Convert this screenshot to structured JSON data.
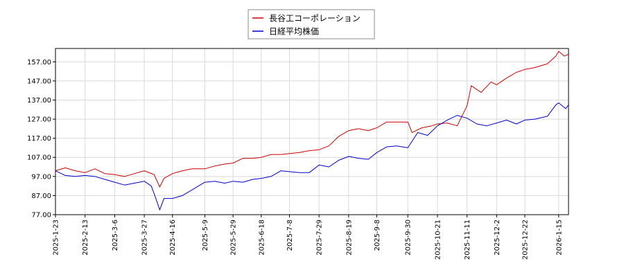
{
  "chart_data": {
    "type": "line",
    "title": "",
    "xlabel": "",
    "ylabel": "",
    "ylim": [
      77.0,
      164.0
    ],
    "yticks": [
      77.0,
      87.0,
      97.0,
      107.0,
      117.0,
      127.0,
      137.0,
      147.0,
      157.0
    ],
    "ytick_labels": [
      "77.00",
      "87.00",
      "97.00",
      "107.00",
      "117.00",
      "127.00",
      "137.00",
      "147.00",
      "157.00"
    ],
    "xlim": [
      "2025-01-23",
      "2026-01-22"
    ],
    "xticks": [
      "2025-1-23",
      "2025-2-13",
      "2025-3-6",
      "2025-3-27",
      "2025-4-16",
      "2025-5-9",
      "2025-5-29",
      "2025-6-18",
      "2025-7-8",
      "2025-7-29",
      "2025-8-19",
      "2025-9-8",
      "2025-9-30",
      "2025-10-21",
      "2025-11-11",
      "2025-12-2",
      "2025-12-22",
      "2026-1-15"
    ],
    "grid": true,
    "legend_position": "top-center",
    "series": [
      {
        "name": "長谷工コーポレーション",
        "color": "#cc0000",
        "points": [
          [
            "2025-01-23",
            100.0
          ],
          [
            "2025-01-30",
            101.5
          ],
          [
            "2025-02-06",
            100.0
          ],
          [
            "2025-02-13",
            99.0
          ],
          [
            "2025-02-20",
            101.0
          ],
          [
            "2025-02-27",
            98.5
          ],
          [
            "2025-03-06",
            98.0
          ],
          [
            "2025-03-13",
            97.0
          ],
          [
            "2025-03-20",
            98.5
          ],
          [
            "2025-03-27",
            100.0
          ],
          [
            "2025-04-03",
            98.0
          ],
          [
            "2025-04-07",
            91.5
          ],
          [
            "2025-04-10",
            96.0
          ],
          [
            "2025-04-16",
            98.5
          ],
          [
            "2025-04-23",
            100.0
          ],
          [
            "2025-04-30",
            101.0
          ],
          [
            "2025-05-09",
            101.0
          ],
          [
            "2025-05-16",
            102.5
          ],
          [
            "2025-05-23",
            103.5
          ],
          [
            "2025-05-29",
            104.0
          ],
          [
            "2025-06-05",
            106.5
          ],
          [
            "2025-06-12",
            106.5
          ],
          [
            "2025-06-18",
            107.0
          ],
          [
            "2025-06-25",
            108.5
          ],
          [
            "2025-07-02",
            108.5
          ],
          [
            "2025-07-08",
            109.0
          ],
          [
            "2025-07-15",
            109.5
          ],
          [
            "2025-07-22",
            110.5
          ],
          [
            "2025-07-29",
            111.0
          ],
          [
            "2025-08-05",
            113.0
          ],
          [
            "2025-08-12",
            118.0
          ],
          [
            "2025-08-19",
            121.0
          ],
          [
            "2025-08-26",
            122.0
          ],
          [
            "2025-09-02",
            121.0
          ],
          [
            "2025-09-08",
            122.5
          ],
          [
            "2025-09-15",
            125.5
          ],
          [
            "2025-09-22",
            125.5
          ],
          [
            "2025-09-30",
            125.5
          ],
          [
            "2025-10-03",
            120.0
          ],
          [
            "2025-10-10",
            122.5
          ],
          [
            "2025-10-17",
            123.5
          ],
          [
            "2025-10-21",
            124.5
          ],
          [
            "2025-10-28",
            125.0
          ],
          [
            "2025-11-04",
            123.5
          ],
          [
            "2025-11-11",
            134.0
          ],
          [
            "2025-11-14",
            144.5
          ],
          [
            "2025-11-21",
            141.0
          ],
          [
            "2025-11-28",
            146.5
          ],
          [
            "2025-12-02",
            145.0
          ],
          [
            "2025-12-09",
            148.5
          ],
          [
            "2025-12-16",
            151.5
          ],
          [
            "2025-12-22",
            153.0
          ],
          [
            "2025-12-29",
            154.0
          ],
          [
            "2026-01-07",
            156.0
          ],
          [
            "2026-01-13",
            160.0
          ],
          [
            "2026-01-15",
            162.5
          ],
          [
            "2026-01-19",
            160.0
          ],
          [
            "2026-01-22",
            161.0
          ]
        ]
      },
      {
        "name": "日経平均株価",
        "color": "#0000cc",
        "points": [
          [
            "2025-01-23",
            100.0
          ],
          [
            "2025-01-30",
            97.5
          ],
          [
            "2025-02-06",
            97.0
          ],
          [
            "2025-02-13",
            97.5
          ],
          [
            "2025-02-20",
            97.0
          ],
          [
            "2025-02-27",
            95.5
          ],
          [
            "2025-03-06",
            94.0
          ],
          [
            "2025-03-13",
            92.5
          ],
          [
            "2025-03-20",
            93.5
          ],
          [
            "2025-03-27",
            94.5
          ],
          [
            "2025-04-01",
            92.0
          ],
          [
            "2025-04-04",
            86.0
          ],
          [
            "2025-04-07",
            79.5
          ],
          [
            "2025-04-10",
            85.5
          ],
          [
            "2025-04-16",
            85.5
          ],
          [
            "2025-04-23",
            87.0
          ],
          [
            "2025-04-30",
            90.0
          ],
          [
            "2025-05-09",
            94.0
          ],
          [
            "2025-05-16",
            94.5
          ],
          [
            "2025-05-23",
            93.5
          ],
          [
            "2025-05-29",
            94.5
          ],
          [
            "2025-06-05",
            94.0
          ],
          [
            "2025-06-12",
            95.5
          ],
          [
            "2025-06-18",
            96.0
          ],
          [
            "2025-06-25",
            97.0
          ],
          [
            "2025-07-02",
            100.0
          ],
          [
            "2025-07-08",
            99.5
          ],
          [
            "2025-07-15",
            99.0
          ],
          [
            "2025-07-22",
            99.0
          ],
          [
            "2025-07-29",
            103.0
          ],
          [
            "2025-08-05",
            102.0
          ],
          [
            "2025-08-12",
            105.5
          ],
          [
            "2025-08-19",
            107.5
          ],
          [
            "2025-08-26",
            106.5
          ],
          [
            "2025-09-02",
            106.0
          ],
          [
            "2025-09-08",
            109.5
          ],
          [
            "2025-09-15",
            112.5
          ],
          [
            "2025-09-22",
            113.0
          ],
          [
            "2025-09-30",
            112.0
          ],
          [
            "2025-10-07",
            120.0
          ],
          [
            "2025-10-14",
            118.5
          ],
          [
            "2025-10-21",
            123.5
          ],
          [
            "2025-10-28",
            126.5
          ],
          [
            "2025-11-04",
            129.0
          ],
          [
            "2025-11-11",
            127.5
          ],
          [
            "2025-11-18",
            124.5
          ],
          [
            "2025-11-25",
            123.5
          ],
          [
            "2025-12-02",
            125.0
          ],
          [
            "2025-12-09",
            126.5
          ],
          [
            "2025-12-16",
            124.5
          ],
          [
            "2025-12-22",
            126.5
          ],
          [
            "2025-12-29",
            127.0
          ],
          [
            "2026-01-07",
            128.5
          ],
          [
            "2026-01-13",
            134.5
          ],
          [
            "2026-01-15",
            135.5
          ],
          [
            "2026-01-20",
            132.5
          ],
          [
            "2026-01-22",
            134.5
          ]
        ]
      }
    ]
  }
}
